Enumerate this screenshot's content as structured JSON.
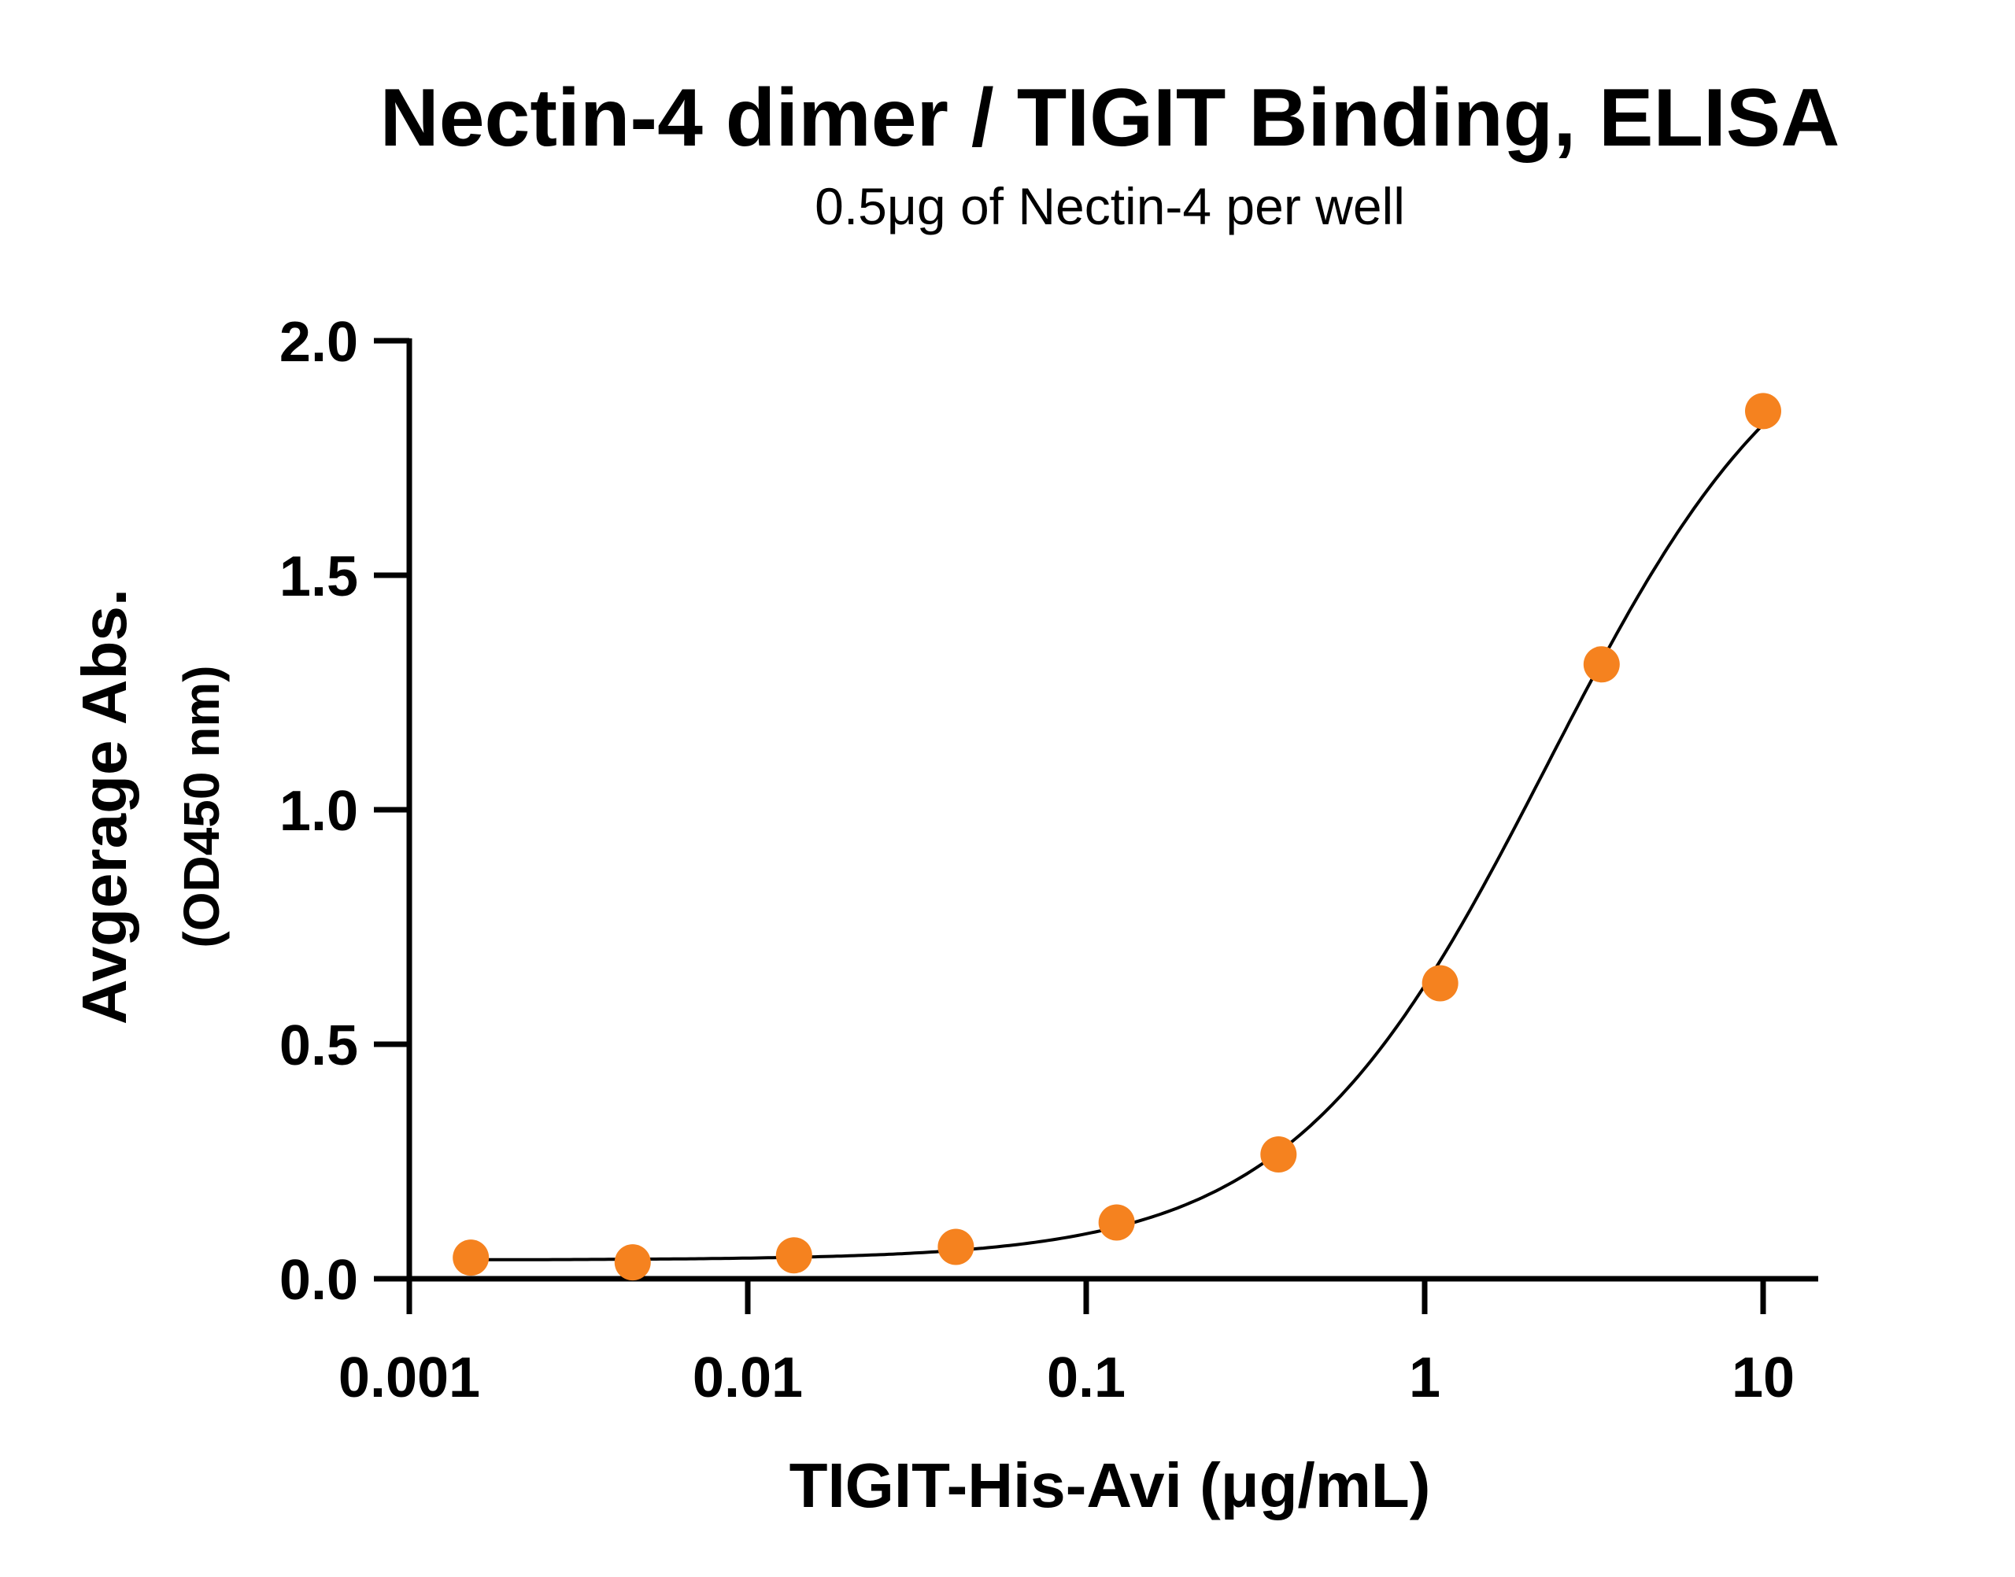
{
  "chart_data": {
    "type": "scatter",
    "title": "Nectin-4 dimer / TIGIT Binding, ELISA",
    "subtitle": "0.5μg of Nectin-4 per well",
    "xlabel": "TIGIT-His-Avi  (μg/mL)",
    "ylabel": "Avgerage Abs.",
    "ylabel_unit": "(OD450 nm)",
    "x_scale": "log",
    "xlim": [
      0.001,
      10
    ],
    "ylim": [
      0,
      2.0
    ],
    "x_ticks": [
      "0.001",
      "0.01",
      "0.1",
      "1",
      "10"
    ],
    "x_tick_values": [
      0.001,
      0.01,
      0.1,
      1,
      10
    ],
    "y_ticks": [
      "0.0",
      "0.5",
      "1.0",
      "1.5",
      "2.0"
    ],
    "y_tick_values": [
      0,
      0.5,
      1.0,
      1.5,
      2.0
    ],
    "grid": false,
    "series": [
      {
        "color": "#F5821F",
        "x": [
          0.00152,
          0.00457,
          0.0137,
          0.0412,
          0.123,
          0.37,
          1.111,
          3.333,
          10
        ],
        "y": [
          0.045,
          0.035,
          0.05,
          0.068,
          0.12,
          0.265,
          0.63,
          1.31,
          1.85
        ]
      }
    ],
    "fit_curve": {
      "type": "4PL",
      "color": "#000000",
      "bottom": 0.04,
      "top": 2.15,
      "ec50": 2.3,
      "hill": 1.15,
      "x_range": [
        0.00152,
        10
      ]
    }
  }
}
